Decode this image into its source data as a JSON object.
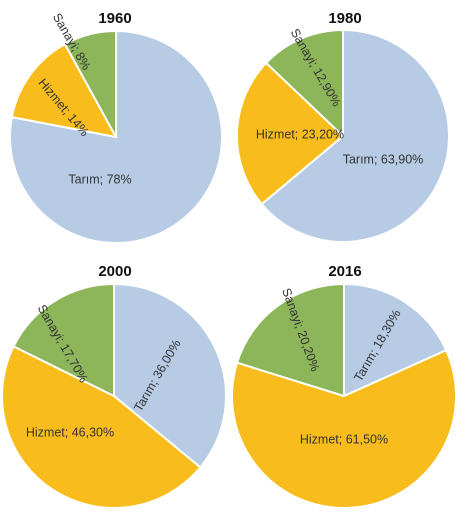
{
  "chart_data": [
    {
      "type": "pie",
      "title": "1960",
      "slices": [
        {
          "category": "Tarım",
          "value": 78,
          "label": "Tarım; 78%"
        },
        {
          "category": "Hizmet",
          "value": 14,
          "label": "Hizmet; 14%"
        },
        {
          "category": "Sanayi",
          "value": 8,
          "label": "Sanayi; 8%"
        }
      ]
    },
    {
      "type": "pie",
      "title": "1980",
      "slices": [
        {
          "category": "Tarım",
          "value": 63.9,
          "label": "Tarım; 63,90%"
        },
        {
          "category": "Hizmet",
          "value": 23.2,
          "label": "Hizmet; 23,20%"
        },
        {
          "category": "Sanayi",
          "value": 12.9,
          "label": "Sanayi; 12,90%"
        }
      ]
    },
    {
      "type": "pie",
      "title": "2000",
      "slices": [
        {
          "category": "Tarım",
          "value": 36.0,
          "label": "Tarım; 36,00%"
        },
        {
          "category": "Hizmet",
          "value": 46.3,
          "label": "Hizmet; 46,30%"
        },
        {
          "category": "Sanayi",
          "value": 17.7,
          "label": "Sanayi; 17,70%"
        }
      ]
    },
    {
      "type": "pie",
      "title": "2016",
      "slices": [
        {
          "category": "Tarım",
          "value": 18.3,
          "label": "Tarım; 18,30%"
        },
        {
          "category": "Hizmet",
          "value": 61.5,
          "label": "Hizmet; 61,50%"
        },
        {
          "category": "Sanayi",
          "value": 20.2,
          "label": "Sanayi; 20,20%"
        }
      ]
    }
  ],
  "colors": {
    "Tarım": "#b7cbe5",
    "Hizmet": "#f8bd1c",
    "Sanayi": "#8db55a"
  }
}
